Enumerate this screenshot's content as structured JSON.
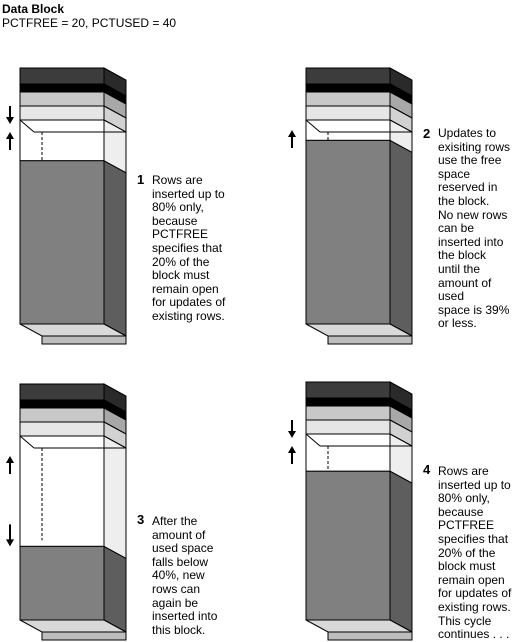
{
  "header": {
    "title": "Data Block",
    "subtitle": "PCTFREE = 20, PCTUSED = 40"
  },
  "colors": {
    "header_dark": "#3c3c3c",
    "header_black": "#000000",
    "header_light": "#c8c8c8",
    "header_lighter": "#e6e6e6",
    "used_space": "#808080",
    "used_side": "#5e5e5e",
    "free_side": "#eeeeee",
    "bottom_top": "#d9d9d9"
  },
  "stages": [
    {
      "number": "1",
      "text": "Rows are\ninserted up to\n80% only,\nbecause\nPCTFREE\nspecifies that\n20% of the\nblock must\nremain open\nfor updates of\nexisting rows.",
      "used_fraction": 0.8,
      "arrows": [
        "down-up"
      ]
    },
    {
      "number": "2",
      "text": "Updates to\nexisiting rows\nuse the free\nspace\nreserved in\nthe block.\nNo new rows\ncan be\ninserted into\nthe block\nuntil the\namount of\nused\nspace is 39%\nor less.",
      "used_fraction": 0.9,
      "arrows": [
        "up"
      ]
    },
    {
      "number": "3",
      "text": "After the\namount of\nused space\nfalls below\n40%, new\nrows can\nagain be\ninserted into\nthis block.",
      "used_fraction": 0.4,
      "arrows": [
        "up",
        "down"
      ]
    },
    {
      "number": "4",
      "text": "Rows are\ninserted up to\n80% only,\nbecause\nPCTFREE\nspecifies that\n20% of the\nblock must\nremain open\nfor updates of\nexisting rows.\nThis cycle\ncontinues . . .",
      "used_fraction": 0.8,
      "arrows": [
        "down-up"
      ]
    }
  ]
}
